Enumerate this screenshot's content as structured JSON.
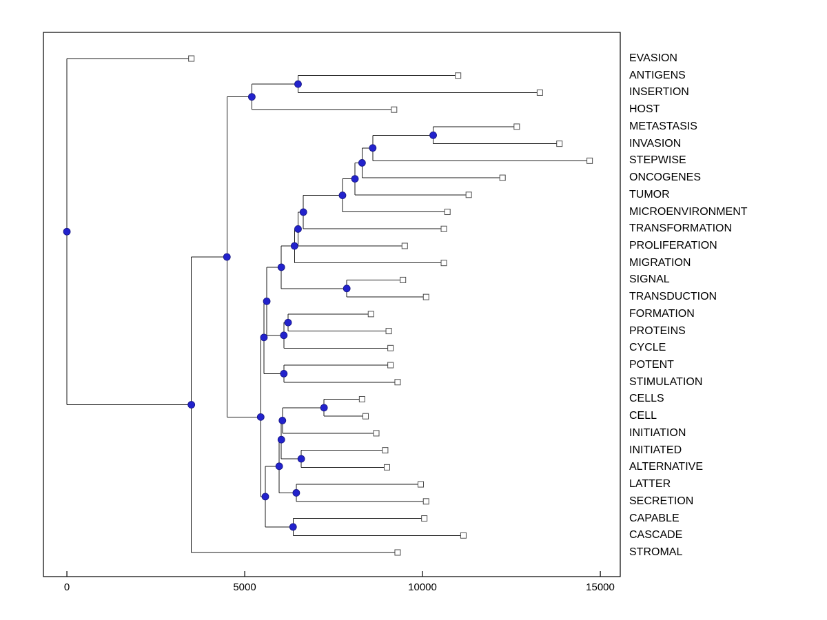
{
  "figure": {
    "background": "#ffffff",
    "plot_border_color": "#000000",
    "branch_line_color": "#1a1a1a",
    "internal_node_color": "#2222cc",
    "internal_node_edge": "#151580",
    "leaf_marker_fill": "#ffffff",
    "leaf_marker_border": "#4a4a4a",
    "label_color": "#000000"
  },
  "x_axis": {
    "tick_labels": [
      "0",
      "5000",
      "10000",
      "15000"
    ],
    "tick_values": [
      0,
      5000,
      10000,
      15000
    ]
  },
  "chart_data": {
    "type": "dendrogram",
    "orientation": "horizontal, root at left, leaves at right",
    "title": "",
    "xlabel": "",
    "ylabel": "",
    "grid": false,
    "legend": null,
    "xlim": [
      -660,
      15560
    ],
    "x_ticks": [
      0,
      5000,
      10000,
      15000
    ],
    "leaf_labels_top_to_bottom": [
      "EVASION",
      "ANTIGENS",
      "INSERTION",
      "HOST",
      "METASTASIS",
      "INVASION",
      "STEPWISE",
      "ONCOGENES",
      "TUMOR",
      "MICROENVIRONMENT",
      "TRANSFORMATION",
      "PROLIFERATION",
      "MIGRATION",
      "SIGNAL",
      "TRANSDUCTION",
      "FORMATION",
      "PROTEINS",
      "CYCLE",
      "POTENT",
      "STIMULATION",
      "CELLS",
      "CELL",
      "INITIATION",
      "INITIATED",
      "ALTERNATIVE",
      "LATTER",
      "SECRETION",
      "CAPABLE",
      "CASCADE",
      "STROMAL"
    ],
    "tree": {
      "x": 0,
      "children": [
        {
          "label": "EVASION",
          "x": 3500
        },
        {
          "x": 3500,
          "children": [
            {
              "x": 4500,
              "children": [
                {
                  "x": 5200,
                  "children": [
                    {
                      "x": 6500,
                      "children": [
                        {
                          "label": "ANTIGENS",
                          "x": 11000
                        },
                        {
                          "label": "INSERTION",
                          "x": 13300
                        }
                      ]
                    },
                    {
                      "label": "HOST",
                      "x": 9200
                    }
                  ]
                },
                {
                  "x": 5450,
                  "children": [
                    {
                      "x": 5540,
                      "children": [
                        {
                          "x": 5620,
                          "children": [
                            {
                              "x": 6030,
                              "children": [
                                {
                                  "x": 6400,
                                  "children": [
                                    {
                                      "x": 6500,
                                      "children": [
                                        {
                                          "x": 6650,
                                          "children": [
                                            {
                                              "x": 7750,
                                              "children": [
                                                {
                                                  "x": 8100,
                                                  "children": [
                                                    {
                                                      "x": 8300,
                                                      "children": [
                                                        {
                                                          "x": 8600,
                                                          "children": [
                                                            {
                                                              "x": 10300,
                                                              "children": [
                                                                {
                                                                  "label": "METASTASIS",
                                                                  "x": 12650
                                                                },
                                                                {
                                                                  "label": "INVASION",
                                                                  "x": 13850
                                                                }
                                                              ]
                                                            },
                                                            {
                                                              "label": "STEPWISE",
                                                              "x": 14700
                                                            }
                                                          ]
                                                        },
                                                        {
                                                          "label": "ONCOGENES",
                                                          "x": 12250
                                                        }
                                                      ]
                                                    },
                                                    {
                                                      "label": "TUMOR",
                                                      "x": 11300
                                                    }
                                                  ]
                                                },
                                                {
                                                  "label": "MICROENVIRONMENT",
                                                  "x": 10700
                                                }
                                              ]
                                            },
                                            {
                                              "label": "TRANSFORMATION",
                                              "x": 10600
                                            }
                                          ]
                                        },
                                        {
                                          "label": "PROLIFERATION",
                                          "x": 9500
                                        }
                                      ]
                                    },
                                    {
                                      "label": "MIGRATION",
                                      "x": 10600
                                    }
                                  ]
                                },
                                {
                                  "x": 7870,
                                  "children": [
                                    {
                                      "label": "SIGNAL",
                                      "x": 9450
                                    },
                                    {
                                      "label": "TRANSDUCTION",
                                      "x": 10100
                                    }
                                  ]
                                }
                              ]
                            },
                            {
                              "x": 6100,
                              "children": [
                                {
                                  "x": 6220,
                                  "children": [
                                    {
                                      "label": "FORMATION",
                                      "x": 8550
                                    },
                                    {
                                      "label": "PROTEINS",
                                      "x": 9050
                                    }
                                  ]
                                },
                                {
                                  "label": "CYCLE",
                                  "x": 9100
                                }
                              ]
                            }
                          ]
                        },
                        {
                          "x": 6100,
                          "children": [
                            {
                              "label": "POTENT",
                              "x": 9100
                            },
                            {
                              "label": "STIMULATION",
                              "x": 9300
                            }
                          ]
                        }
                      ]
                    },
                    {
                      "x": 5580,
                      "children": [
                        {
                          "x": 5970,
                          "children": [
                            {
                              "x": 6030,
                              "children": [
                                {
                                  "x": 6060,
                                  "children": [
                                    {
                                      "x": 7230,
                                      "children": [
                                        {
                                          "label": "CELLS",
                                          "x": 8300
                                        },
                                        {
                                          "label": "CELL",
                                          "x": 8400
                                        }
                                      ]
                                    },
                                    {
                                      "label": "INITIATION",
                                      "x": 8700
                                    }
                                  ]
                                },
                                {
                                  "x": 6590,
                                  "children": [
                                    {
                                      "label": "INITIATED",
                                      "x": 8950
                                    },
                                    {
                                      "label": "ALTERNATIVE",
                                      "x": 9000
                                    }
                                  ]
                                }
                              ]
                            },
                            {
                              "x": 6450,
                              "children": [
                                {
                                  "label": "LATTER",
                                  "x": 9950
                                },
                                {
                                  "label": "SECRETION",
                                  "x": 10100
                                }
                              ]
                            }
                          ]
                        },
                        {
                          "x": 6360,
                          "children": [
                            {
                              "label": "CAPABLE",
                              "x": 10050
                            },
                            {
                              "label": "CASCADE",
                              "x": 11150
                            }
                          ]
                        }
                      ]
                    }
                  ]
                }
              ]
            },
            {
              "label": "STROMAL",
              "x": 9300
            }
          ]
        }
      ]
    }
  }
}
